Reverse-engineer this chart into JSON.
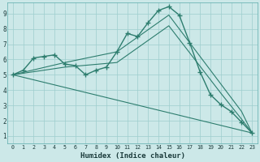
{
  "xlabel": "Humidex (Indice chaleur)",
  "background_color": "#cce8e8",
  "grid_color": "#9ecece",
  "line_color": "#2d7d6e",
  "xlim": [
    -0.5,
    23.5
  ],
  "ylim": [
    0.5,
    9.7
  ],
  "xticks": [
    0,
    1,
    2,
    3,
    4,
    5,
    6,
    7,
    8,
    9,
    10,
    11,
    12,
    13,
    14,
    15,
    16,
    17,
    18,
    19,
    20,
    21,
    22,
    23
  ],
  "yticks": [
    1,
    2,
    3,
    4,
    5,
    6,
    7,
    8,
    9
  ],
  "series": [
    {
      "x": [
        0,
        1,
        2,
        3,
        4,
        5,
        6,
        7,
        8,
        9,
        10,
        11,
        12,
        13,
        14,
        15,
        16,
        17,
        18,
        19,
        20,
        21,
        22,
        23
      ],
      "y": [
        5.0,
        5.3,
        6.1,
        6.2,
        6.3,
        5.7,
        5.6,
        5.0,
        5.3,
        5.5,
        6.5,
        7.7,
        7.5,
        8.4,
        9.2,
        9.45,
        8.9,
        7.1,
        5.2,
        3.7,
        3.05,
        2.6,
        1.9,
        1.2
      ],
      "marker": true
    },
    {
      "x": [
        0,
        5,
        10,
        15,
        20,
        22,
        23
      ],
      "y": [
        5.0,
        5.8,
        6.5,
        8.9,
        4.4,
        2.6,
        1.2
      ],
      "marker": false
    },
    {
      "x": [
        0,
        5,
        10,
        15,
        20,
        22,
        23
      ],
      "y": [
        5.0,
        5.5,
        5.8,
        8.2,
        3.8,
        2.1,
        1.2
      ],
      "marker": false
    },
    {
      "x": [
        0,
        23
      ],
      "y": [
        5.0,
        1.2
      ],
      "marker": false
    }
  ]
}
